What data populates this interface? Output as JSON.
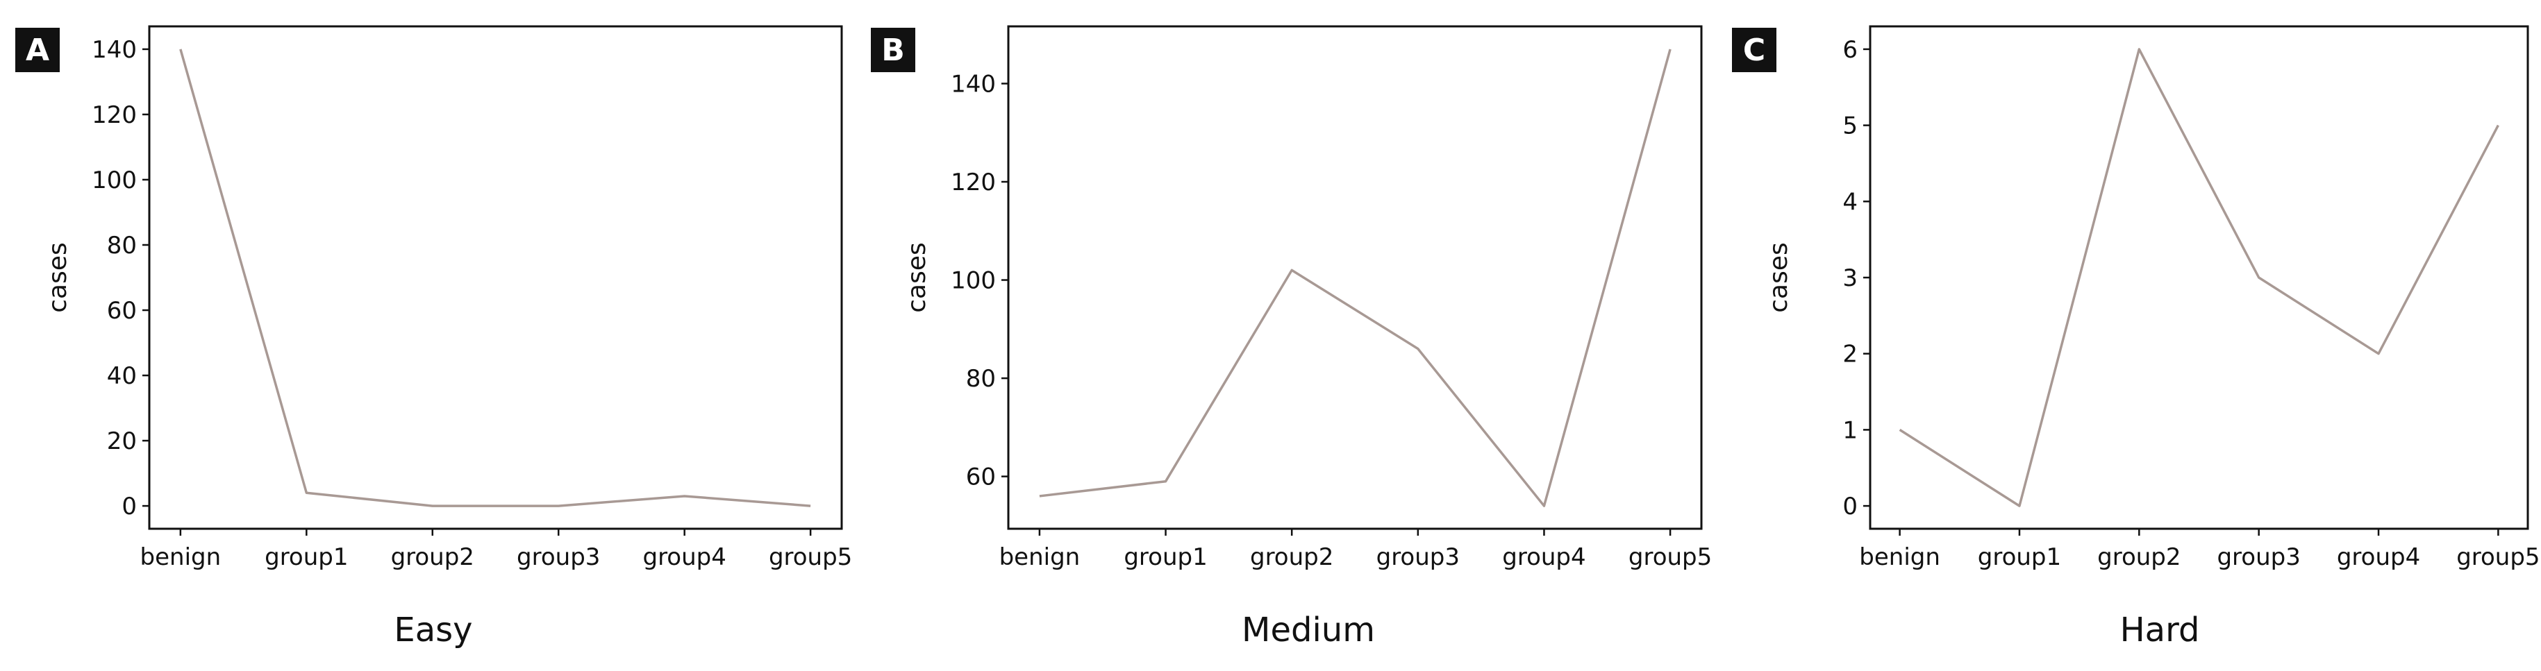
{
  "panels": [
    {
      "letter": "A",
      "caption": "Easy"
    },
    {
      "letter": "B",
      "caption": "Medium"
    },
    {
      "letter": "C",
      "caption": "Hard"
    }
  ],
  "chart_data": [
    {
      "type": "line",
      "panel": "A",
      "title": "Easy",
      "xlabel": "",
      "ylabel": "cases",
      "categories": [
        "benign",
        "group1",
        "group2",
        "group3",
        "group4",
        "group5"
      ],
      "values": [
        140,
        4,
        0,
        0,
        3,
        0
      ],
      "yticks": [
        0,
        20,
        40,
        60,
        80,
        100,
        120,
        140
      ],
      "ylim": [
        -7,
        147
      ],
      "grid": false,
      "line_color": "#a89994"
    },
    {
      "type": "line",
      "panel": "B",
      "title": "Medium",
      "xlabel": "",
      "ylabel": "cases",
      "categories": [
        "benign",
        "group1",
        "group2",
        "group3",
        "group4",
        "group5"
      ],
      "values": [
        56,
        59,
        102,
        86,
        54,
        147
      ],
      "yticks": [
        60,
        80,
        100,
        120,
        140
      ],
      "ylim": [
        49.35,
        151.65
      ],
      "grid": false,
      "line_color": "#a89994"
    },
    {
      "type": "line",
      "panel": "C",
      "title": "Hard",
      "xlabel": "",
      "ylabel": "cases",
      "categories": [
        "benign",
        "group1",
        "group2",
        "group3",
        "group4",
        "group5"
      ],
      "values": [
        1,
        0,
        6,
        3,
        2,
        5
      ],
      "yticks": [
        0,
        1,
        2,
        3,
        4,
        5,
        6
      ],
      "ylim": [
        -0.3,
        6.3
      ],
      "grid": false,
      "line_color": "#a89994"
    }
  ]
}
